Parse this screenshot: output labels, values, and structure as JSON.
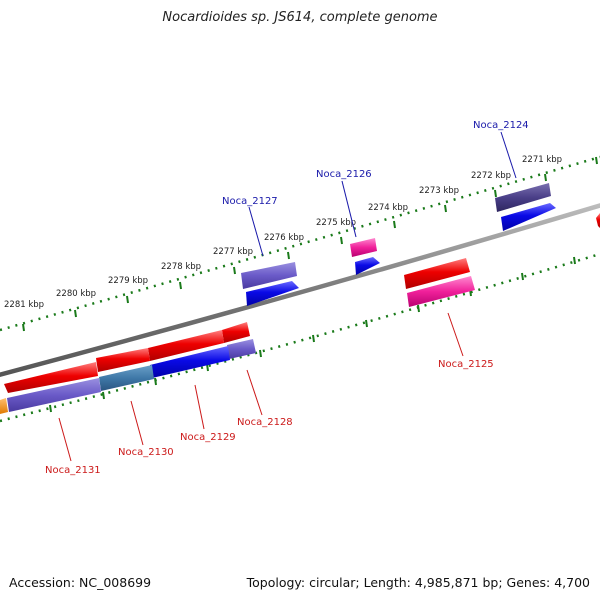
{
  "title": "Nocardioides sp. JS614, complete genome",
  "footer": {
    "accession": "Accession: NC_008699",
    "topology": "Topology: circular; Length: 4,985,871 bp; Genes: 4,700"
  },
  "colors": {
    "backbone": "#808080",
    "tick": "#1a7a1a",
    "label_blue": "#1a1aaa",
    "label_red": "#cc1a1a"
  },
  "tick_labels": [
    "2271 kbp",
    "2272 kbp",
    "2273 kbp",
    "2274 kbp",
    "2275 kbp",
    "2276 kbp",
    "2277 kbp",
    "2278 kbp",
    "2279 kbp",
    "2280 kbp",
    "2281 kbp"
  ],
  "gene_labels": {
    "top": [
      "Noca_2124",
      "Noca_2126",
      "Noca_2127"
    ],
    "bottom": [
      "Noca_2125",
      "Noca_2128",
      "Noca_2129",
      "Noca_2130",
      "Noca_2131"
    ]
  }
}
